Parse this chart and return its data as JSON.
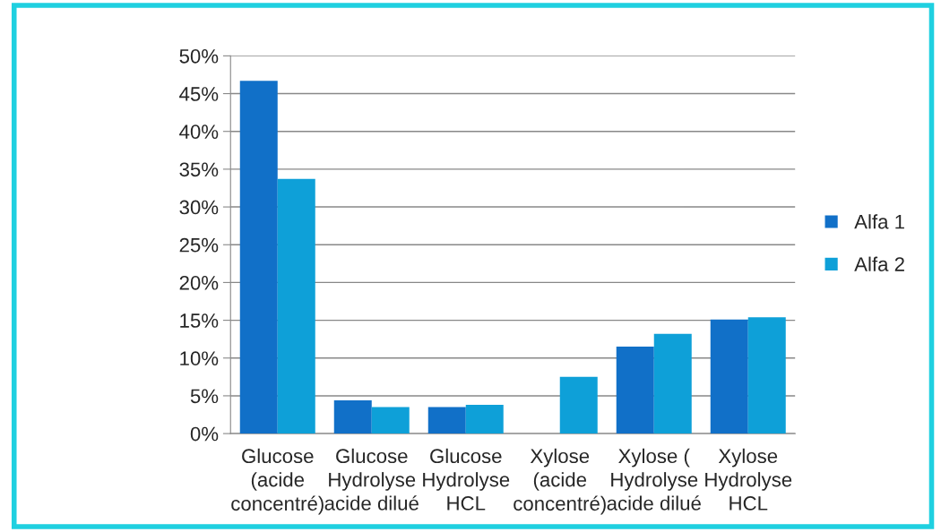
{
  "chart_data": {
    "type": "bar",
    "categories": [
      "Glucose\n(acide\nconcentré)",
      "Glucose\nHydrolyse\nacide dilué",
      "Glucose\nHydrolyse\nHCL",
      "Xylose\n(acide\nconcentré)",
      "Xylose (\nHydrolyse\nacide dilué",
      "Xylose\nHydrolyse\nHCL"
    ],
    "series": [
      {
        "name": "Alfa 1",
        "color": "#1170c8",
        "values": [
          46.7,
          4.4,
          3.5,
          null,
          11.5,
          15.1
        ]
      },
      {
        "name": "Alfa 2",
        "color": "#0ea0d8",
        "values": [
          33.7,
          3.5,
          3.8,
          7.5,
          13.2,
          15.4
        ]
      }
    ],
    "ylim": [
      0,
      50
    ],
    "yticks": [
      {
        "value": 0,
        "label": "0%"
      },
      {
        "value": 5,
        "label": "5%"
      },
      {
        "value": 10,
        "label": "10%"
      },
      {
        "value": 15,
        "label": "15%"
      },
      {
        "value": 20,
        "label": "20%"
      },
      {
        "value": 25,
        "label": "25%"
      },
      {
        "value": 30,
        "label": "30%"
      },
      {
        "value": 35,
        "label": "35%"
      },
      {
        "value": 40,
        "label": "40%"
      },
      {
        "value": 45,
        "label": "45%"
      },
      {
        "value": 50,
        "label": "50%"
      }
    ],
    "grid": "y",
    "legend": "right"
  }
}
